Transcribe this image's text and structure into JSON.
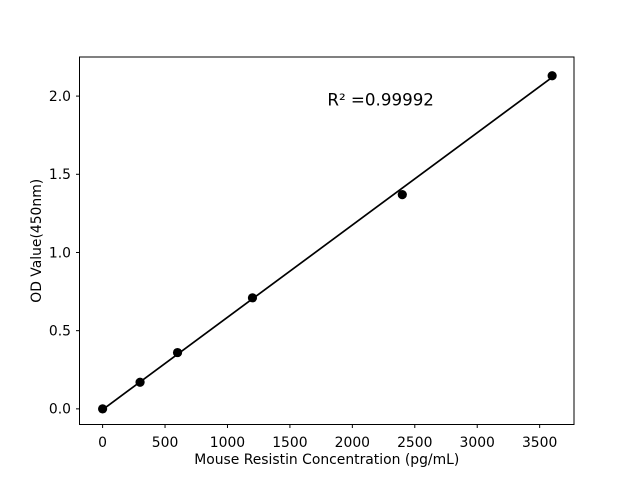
{
  "chart_data": {
    "type": "scatter",
    "title": "",
    "xlabel": "Mouse Resistin Concentration (pg/mL)",
    "ylabel": "OD Value(450nm)",
    "points": {
      "x": [
        0,
        300,
        600,
        1200,
        2400,
        3600
      ],
      "y": [
        0.0,
        0.17,
        0.36,
        0.71,
        1.37,
        2.13
      ]
    },
    "fit_line": {
      "x": [
        0,
        3600
      ],
      "y": [
        -0.005,
        2.12
      ]
    },
    "annotation": {
      "text": "R² =0.99992",
      "x_frac": 0.609,
      "y_frac_baseline": 0.868
    },
    "r_squared": 0.99992,
    "xlim": [
      -185,
      3775
    ],
    "ylim": [
      -0.1,
      2.25
    ],
    "xticks": {
      "values": [
        0,
        500,
        1000,
        1500,
        2000,
        2500,
        3000,
        3500
      ],
      "labels": [
        "0",
        "500",
        "1000",
        "1500",
        "2000",
        "2500",
        "3000",
        "3500"
      ]
    },
    "yticks": {
      "values": [
        0,
        0.5,
        1.0,
        1.5,
        2.0
      ],
      "labels": [
        "0.0",
        "0.5",
        "1.0",
        "1.5",
        "2.0"
      ]
    },
    "grid": false,
    "legend": false,
    "colors": {
      "marker": "#000000",
      "line": "#000000",
      "axis": "#000000",
      "background": "#ffffff"
    }
  }
}
